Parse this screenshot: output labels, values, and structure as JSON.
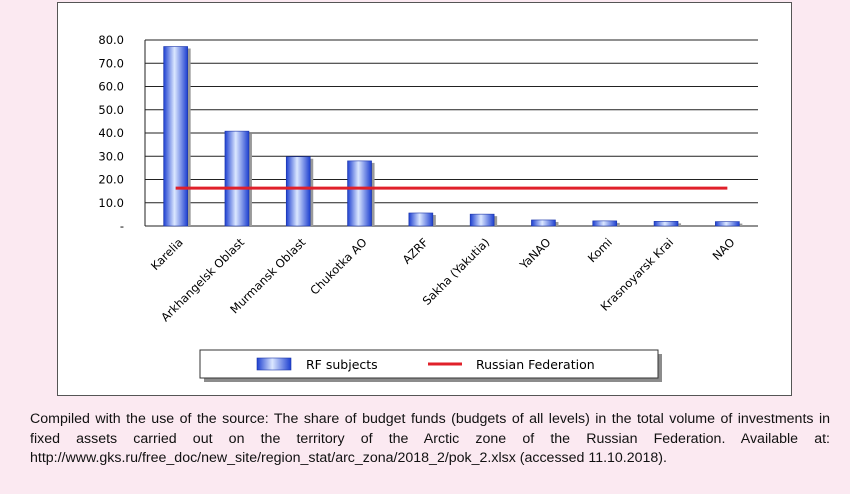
{
  "chart_data": {
    "type": "bar",
    "categories": [
      "Karelia",
      "Arkhangelsk Oblast",
      "Murmansk Oblast",
      "Chukotka AO",
      "AZRF",
      "Sakha (Yakutia)",
      "YaNAO",
      "Komi",
      "Krasnoyarsk Krai",
      "NAO"
    ],
    "series": [
      {
        "name": "RF subjects",
        "type": "bar",
        "values": [
          77.2,
          40.8,
          29.8,
          28.0,
          5.6,
          5.1,
          2.6,
          2.2,
          2.0,
          1.9
        ]
      },
      {
        "name": "Russian Federation",
        "type": "line",
        "value": 16.3
      }
    ],
    "yticks": [
      "-",
      "10.0",
      "20.0",
      "30.0",
      "40.0",
      "50.0",
      "60.0",
      "70.0",
      "80.0"
    ],
    "ylim": [
      0,
      80
    ],
    "grid": true,
    "legend": "bottom",
    "colors": {
      "bar": "#2f5ee8",
      "bar_light": "#dbe7ff",
      "line": "#e0202a"
    }
  },
  "caption": "Compiled with the use of the source: The share of budget funds (budgets of all levels) in the total volume of investments in fixed assets carried out on the territory of the Arctic zone of the Russian Federation. Available at: http://www.gks.ru/free_doc/new_site/region_stat/arc_zona/2018_2/pok_2.xlsx (accessed 11.10.2018)."
}
